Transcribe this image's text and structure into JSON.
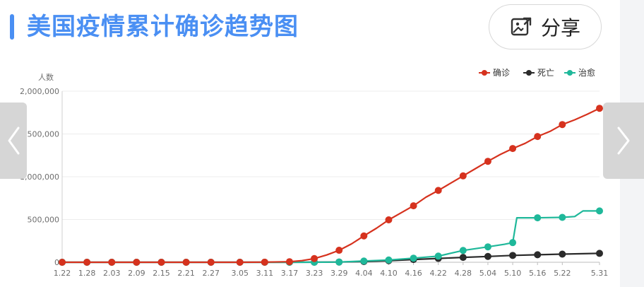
{
  "header": {
    "title": "美国疫情累计确诊趋势图",
    "share_label": "分享"
  },
  "colors": {
    "accent": "#4a8ff3",
    "confirmed": "#d6321e",
    "deaths": "#2b2b2b",
    "recovered": "#1fb89a"
  },
  "chart_data": {
    "type": "line",
    "ylabel": "人数",
    "ylim": [
      0,
      2000000
    ],
    "yticks": [
      0,
      500000,
      1000000,
      1500000,
      2000000
    ],
    "ytick_labels": [
      "0",
      "500,000",
      "1,000,000",
      "1,500,000",
      "2,000,000"
    ],
    "xtick_labels": [
      "1.22",
      "1.28",
      "2.03",
      "2.09",
      "2.15",
      "2.21",
      "2.27",
      "3.05",
      "3.11",
      "3.17",
      "3.23",
      "3.29",
      "4.04",
      "4.10",
      "4.16",
      "4.22",
      "4.28",
      "5.04",
      "5.10",
      "5.16",
      "5.22",
      "5.31"
    ],
    "grid": true,
    "legend_position": "top-right",
    "series": [
      {
        "name": "确诊",
        "color": "#d6321e",
        "points": [
          [
            "1.22",
            1
          ],
          [
            "1.28",
            5
          ],
          [
            "2.03",
            11
          ],
          [
            "2.09",
            12
          ],
          [
            "2.15",
            15
          ],
          [
            "2.21",
            35
          ],
          [
            "2.27",
            60
          ],
          [
            "3.05",
            220
          ],
          [
            "3.11",
            1300
          ],
          [
            "3.17",
            6500
          ],
          [
            "3.20",
            19000
          ],
          [
            "3.23",
            43000
          ],
          [
            "3.26",
            85000
          ],
          [
            "3.29",
            140000
          ],
          [
            "4.01",
            215000
          ],
          [
            "4.04",
            308000
          ],
          [
            "4.07",
            397000
          ],
          [
            "4.10",
            496000
          ],
          [
            "4.13",
            578000
          ],
          [
            "4.16",
            660000
          ],
          [
            "4.19",
            760000
          ],
          [
            "4.22",
            840000
          ],
          [
            "4.25",
            925000
          ],
          [
            "4.28",
            1010000
          ],
          [
            "5.01",
            1095000
          ],
          [
            "5.04",
            1180000
          ],
          [
            "5.07",
            1260000
          ],
          [
            "5.10",
            1330000
          ],
          [
            "5.13",
            1390000
          ],
          [
            "5.16",
            1470000
          ],
          [
            "5.19",
            1530000
          ],
          [
            "5.22",
            1610000
          ],
          [
            "5.25",
            1665000
          ],
          [
            "5.28",
            1730000
          ],
          [
            "5.31",
            1800000
          ]
        ]
      },
      {
        "name": "死亡",
        "color": "#2b2b2b",
        "points": [
          [
            "1.22",
            0
          ],
          [
            "1.28",
            0
          ],
          [
            "2.03",
            0
          ],
          [
            "2.09",
            0
          ],
          [
            "2.15",
            0
          ],
          [
            "2.21",
            0
          ],
          [
            "2.27",
            0
          ],
          [
            "3.05",
            11
          ],
          [
            "3.11",
            38
          ],
          [
            "3.17",
            108
          ],
          [
            "3.23",
            550
          ],
          [
            "3.29",
            2500
          ],
          [
            "4.04",
            8500
          ],
          [
            "4.10",
            18500
          ],
          [
            "4.16",
            32000
          ],
          [
            "4.22",
            45000
          ],
          [
            "4.28",
            57000
          ],
          [
            "5.04",
            68000
          ],
          [
            "5.10",
            80000
          ],
          [
            "5.16",
            88000
          ],
          [
            "5.22",
            95000
          ],
          [
            "5.31",
            104000
          ]
        ]
      },
      {
        "name": "治愈",
        "color": "#1fb89a",
        "points": [
          [
            "1.22",
            0
          ],
          [
            "1.28",
            0
          ],
          [
            "2.03",
            1
          ],
          [
            "2.09",
            3
          ],
          [
            "2.15",
            3
          ],
          [
            "2.21",
            5
          ],
          [
            "2.27",
            7
          ],
          [
            "3.05",
            8
          ],
          [
            "3.11",
            8
          ],
          [
            "3.17",
            100
          ],
          [
            "3.23",
            350
          ],
          [
            "3.29",
            2600
          ],
          [
            "4.04",
            14600
          ],
          [
            "4.10",
            26500
          ],
          [
            "4.16",
            48000
          ],
          [
            "4.22",
            72000
          ],
          [
            "4.28",
            138000
          ],
          [
            "5.04",
            180000
          ],
          [
            "5.08",
            210000
          ],
          [
            "5.10",
            230000
          ],
          [
            "5.11",
            520000
          ],
          [
            "5.16",
            520000
          ],
          [
            "5.22",
            525000
          ],
          [
            "5.25",
            535000
          ],
          [
            "5.27",
            600000
          ],
          [
            "5.31",
            600000
          ]
        ]
      }
    ]
  }
}
